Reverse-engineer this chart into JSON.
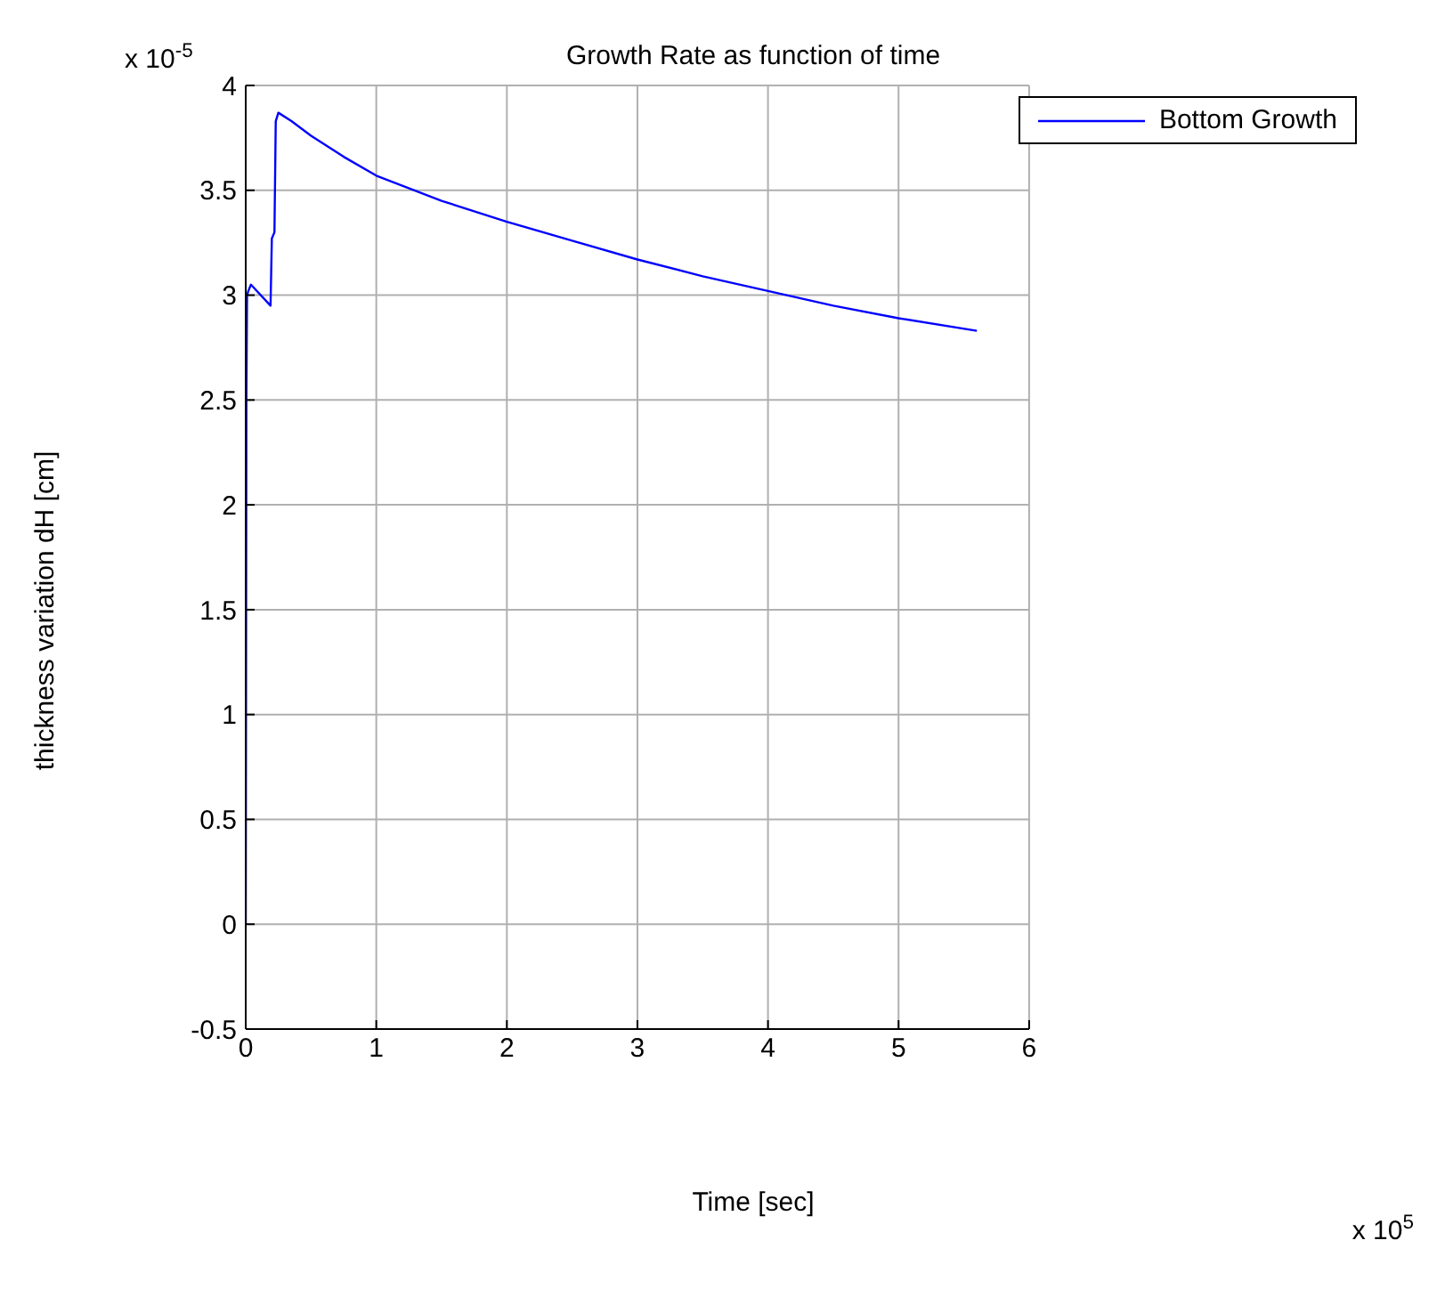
{
  "chart_data": {
    "type": "line",
    "title": "Growth Rate as function of time",
    "xlabel": "Time [sec]",
    "ylabel": "thickness variation  dH [cm]",
    "annotations": [
      "x 10$^{-5}$",
      "x 10$^{5}$"
    ],
    "x": [
      0,
      0.005,
      0.01,
      0.02,
      0.04,
      0.19,
      0.2,
      0.22,
      0.23,
      0.25,
      0.35,
      0.5,
      0.75,
      1,
      1.5,
      2,
      2.5,
      3,
      3.5,
      4,
      4.5,
      5,
      5.6
    ],
    "series": [
      {
        "name": "Bottom Growth",
        "color": "#0000ff",
        "values": [
          0,
          2.5,
          3.0,
          3.02,
          3.05,
          2.95,
          3.27,
          3.3,
          3.83,
          3.87,
          3.83,
          3.76,
          3.66,
          3.57,
          3.45,
          3.35,
          3.26,
          3.17,
          3.09,
          3.02,
          2.95,
          2.89,
          2.83
        ]
      }
    ],
    "xlim": [
      0,
      6
    ],
    "xticks": [
      0,
      1,
      2,
      3,
      4,
      5,
      6
    ],
    "ylim": [
      -0.5,
      4
    ],
    "yticks": [
      -0.5,
      0,
      0.5,
      1,
      1.5,
      2,
      2.5,
      3,
      3.5,
      4
    ],
    "grid": true,
    "legend": "top right",
    "marker": "none",
    "line_style": "solid"
  }
}
